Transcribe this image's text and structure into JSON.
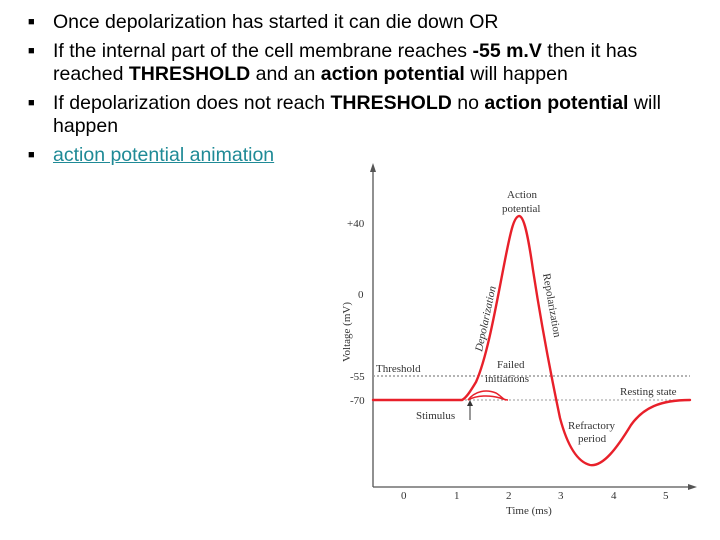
{
  "bullets": {
    "b1": "Once depolarization has started it can die down OR",
    "b2_a": "If the internal part of the cell membrane reaches ",
    "b2_b": "-55 m.V",
    "b2_c": " then it has reached ",
    "b2_d": "THRESHOLD",
    "b2_e": " and an ",
    "b2_f": "action potential",
    "b2_g": " will happen",
    "b3_a": "If depolarization does not reach ",
    "b3_b": "THRESHOLD",
    "b3_c": " no ",
    "b3_d": "action potential",
    "b3_e": " will happen",
    "b4_link": "action potential animation"
  },
  "diagram": {
    "ylabel": "Voltage (mV)",
    "xlabel": "Time (ms)",
    "yticks": [
      "+40",
      "0",
      "-55",
      "-70"
    ],
    "xticks": [
      "0",
      "1",
      "2",
      "3",
      "4",
      "5"
    ],
    "label_ap_1": "Action",
    "label_ap_2": "potential",
    "label_depol": "Depolarization",
    "label_repol": "Repolarization",
    "label_threshold": "Threshold",
    "label_failed_1": "Failed",
    "label_failed_2": "initiations",
    "label_resting": "Resting state",
    "label_stimulus": "Stimulus",
    "label_refractory_1": "Refractory",
    "label_refractory_2": "period",
    "colors": {
      "curve": "#e8202a",
      "threshold_line": "#9a9a9a",
      "axis": "#555555"
    }
  }
}
